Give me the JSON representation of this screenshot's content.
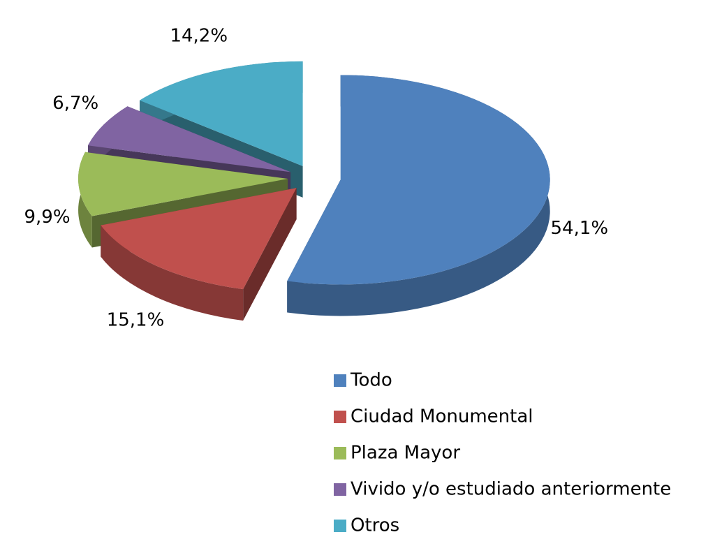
{
  "chart_data": {
    "type": "pie",
    "categories": [
      "Todo",
      "Ciudad Monumental",
      "Plaza Mayor",
      "Vivido y/o estudiado anteriormente",
      "Otros"
    ],
    "values": [
      54.1,
      15.1,
      9.9,
      6.7,
      14.2
    ],
    "value_labels": [
      "54,1%",
      "15,1%",
      "9,9%",
      "6,7%",
      "14,2%"
    ],
    "colors": [
      "#4f81bd",
      "#c0504d",
      "#9bbb59",
      "#8064a2",
      "#4bacc6"
    ],
    "legend": "bottom-right"
  }
}
